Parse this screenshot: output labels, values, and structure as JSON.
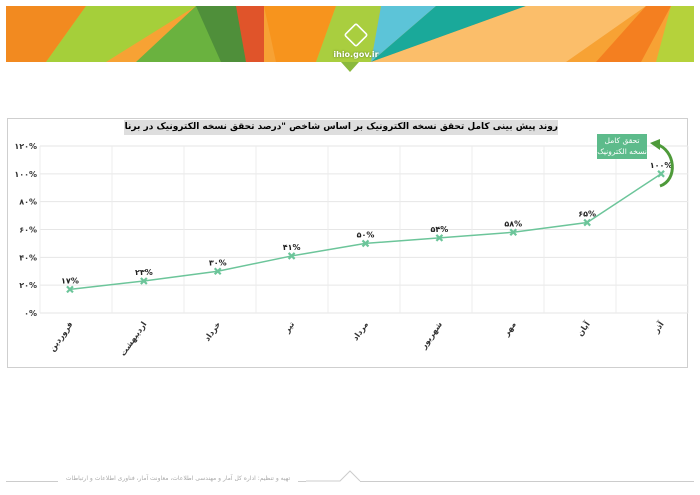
{
  "header": {
    "logo_url": "ihio.gov.ir"
  },
  "footer": {
    "text": "تهیه و تنظیم: اداره کل آمار و مهندسی اطلاعات، معاونت آمار، فناوری اطلاعات و ارتباطات"
  },
  "chart_data": {
    "type": "line",
    "title": "روند پیش بینی کامل تحقق نسخه الکترونیک بر اساس شاخص \"درصد تحقق نسخه الکترونیک در برنامه کاهش کاربرد دفترچه\"",
    "categories": [
      "فروردین",
      "اردیبهشت",
      "خرداد",
      "تیر",
      "مرداد",
      "شهریور",
      "مهر",
      "آبان",
      "آذر"
    ],
    "values": [
      17,
      23,
      30,
      41,
      50,
      54,
      58,
      65,
      100
    ],
    "data_labels": [
      "۱۷%",
      "۲۳%",
      "۳۰%",
      "۴۱%",
      "۵۰%",
      "۵۴%",
      "۵۸%",
      "۶۵%",
      "۱۰۰%"
    ],
    "ylim": [
      0,
      120
    ],
    "yticks": [
      0,
      20,
      40,
      60,
      80,
      100,
      120
    ],
    "ytick_labels": [
      "۰%",
      "۲۰%",
      "۴۰%",
      "۶۰%",
      "۸۰%",
      "۱۰۰%",
      "۱۲۰%"
    ],
    "grid": true,
    "annotation": "تحقق کامل نسخه الکترونیک",
    "line_color": "#6cc59a"
  }
}
